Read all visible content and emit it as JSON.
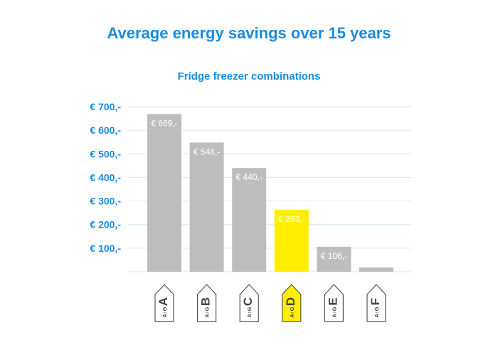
{
  "chart_data": {
    "type": "bar",
    "title": "Average energy savings over 15 years",
    "subtitle": "Fridge freezer combinations",
    "categories": [
      "A",
      "B",
      "C",
      "D",
      "E",
      "F"
    ],
    "values": [
      669,
      548,
      440,
      263,
      106,
      18
    ],
    "data_labels": [
      "€ 669,-",
      "€ 548,-",
      "€ 440,-",
      "€ 263,-",
      "€ 106,-",
      ""
    ],
    "highlight_category": "D",
    "ylim": [
      0,
      700
    ],
    "y_ticks": [
      100,
      200,
      300,
      400,
      500,
      600,
      700
    ],
    "y_tick_labels": [
      "€ 100,-",
      "€ 200,-",
      "€ 300,-",
      "€ 400,-",
      "€ 500,-",
      "€ 600,-",
      "€ 700,-"
    ],
    "xlabel": "",
    "ylabel": "",
    "grid": true,
    "legend": "none",
    "energy_label_scale": "A↑G",
    "colors": {
      "title": "#1a8be0",
      "axis_labels": "#1a8be0",
      "bar": "#bdbdbd",
      "bar_highlight": "#ffee00",
      "gridline": "#d6e7f5",
      "data_label": "#ffffff"
    }
  }
}
